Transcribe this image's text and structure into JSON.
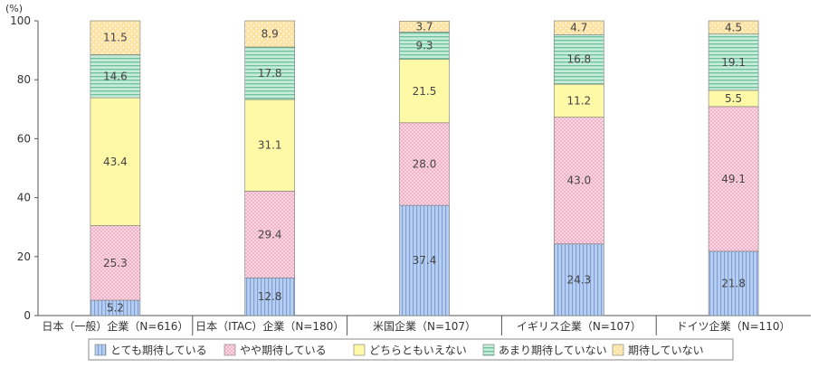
{
  "chart_data": {
    "type": "bar",
    "stacked": true,
    "unit_label": "(%)",
    "categories": [
      "日本（一般）企業（N=616）",
      "日本（ITAC）企業（N=180）",
      "米国企業（N=107）",
      "イギリス企業（N=107）",
      "ドイツ企業（N=110）"
    ],
    "ylim": [
      0,
      100
    ],
    "yticks": [
      0,
      20,
      40,
      60,
      80,
      100
    ],
    "grid": false,
    "legend_position": "bottom",
    "series": [
      {
        "name": "とても期待している",
        "values": [
          5.2,
          12.8,
          37.4,
          24.3,
          21.8
        ],
        "color": "#a9c4ec"
      },
      {
        "name": "やや期待している",
        "values": [
          25.3,
          29.4,
          28.0,
          43.0,
          49.1
        ],
        "color": "#f8ccdc"
      },
      {
        "name": "どちらともいえない",
        "values": [
          43.4,
          31.1,
          21.5,
          11.2,
          5.5
        ],
        "color": "#fbf69a"
      },
      {
        "name": "あまり期待していない",
        "values": [
          14.6,
          17.8,
          9.3,
          16.8,
          19.1
        ],
        "color": "#9ed8bc"
      },
      {
        "name": "期待していない",
        "values": [
          11.5,
          8.9,
          3.7,
          4.7,
          4.5
        ],
        "color": "#fbd98c"
      }
    ],
    "value_labels": [
      [
        "5.2",
        "12.8",
        "37.4",
        "24.3",
        "21.8"
      ],
      [
        "25.3",
        "29.4",
        "28.0",
        "43.0",
        "49.1"
      ],
      [
        "43.4",
        "31.1",
        "21.5",
        "11.2",
        "5.5"
      ],
      [
        "14.6",
        "17.8",
        "9.3",
        "16.8",
        "19.1"
      ],
      [
        "11.5",
        "8.9",
        "3.7",
        "4.7",
        "4.5"
      ]
    ]
  }
}
